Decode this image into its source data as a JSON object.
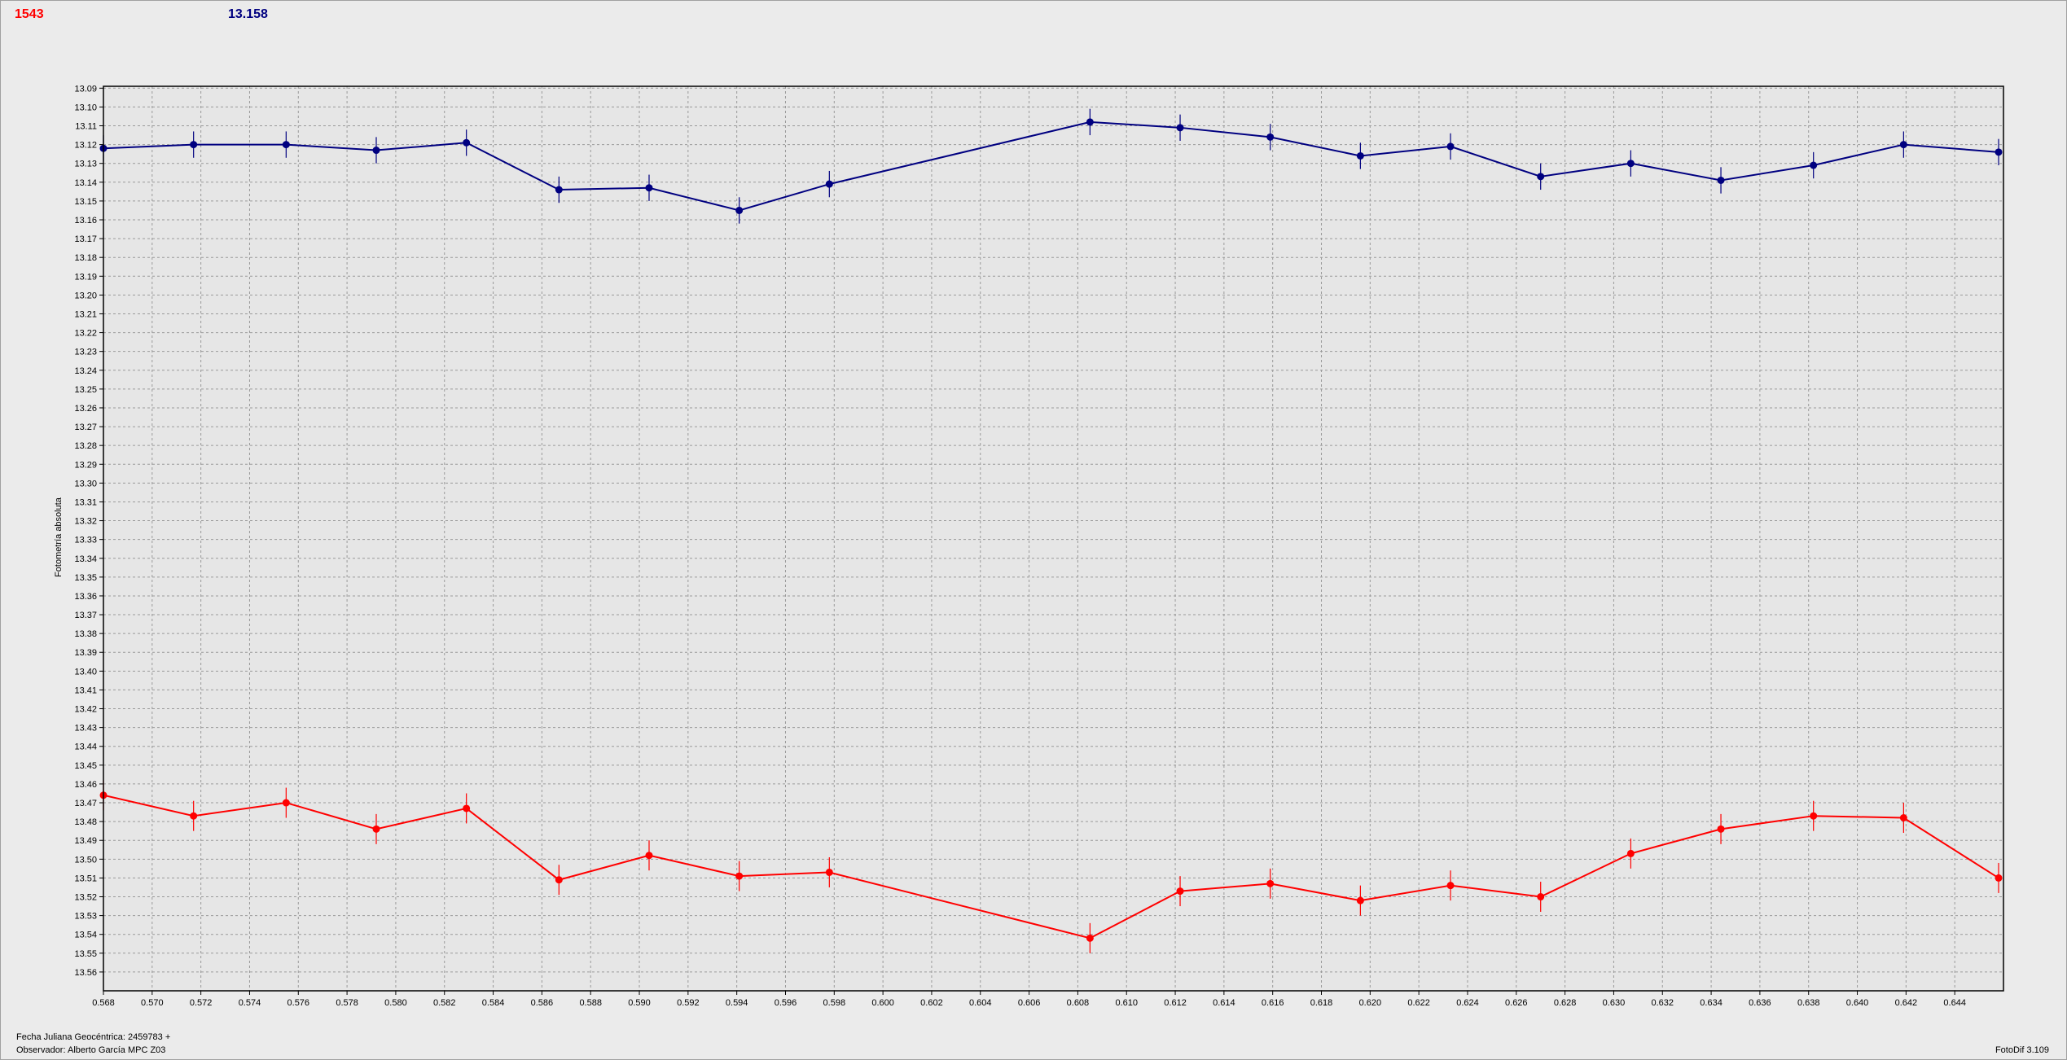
{
  "header": {
    "left_value": "1543",
    "right_value": "13.158"
  },
  "ylabel": "Fotometría absoluta",
  "footer": {
    "line1": "Fecha Juliana Geocéntrica: 2459783 +",
    "line2": "Observador: Alberto García MPC Z03",
    "version": "FotoDif 3.109"
  },
  "colors": {
    "series_blue": "#000080",
    "series_red": "#ff0000",
    "grid": "#9a9a9a",
    "plot_bg": "#e6e6e6"
  },
  "chart_data": {
    "type": "line",
    "grid": true,
    "xlim": [
      0.568,
      0.646
    ],
    "ylim": [
      13.089,
      13.57
    ],
    "y_inverted": true,
    "x_ticks": [
      "0.568",
      "0.570",
      "0.572",
      "0.574",
      "0.576",
      "0.578",
      "0.580",
      "0.582",
      "0.584",
      "0.586",
      "0.588",
      "0.590",
      "0.592",
      "0.594",
      "0.596",
      "0.598",
      "0.600",
      "0.602",
      "0.604",
      "0.606",
      "0.608",
      "0.610",
      "0.612",
      "0.614",
      "0.616",
      "0.618",
      "0.620",
      "0.622",
      "0.624",
      "0.626",
      "0.628",
      "0.630",
      "0.632",
      "0.634",
      "0.636",
      "0.638",
      "0.640",
      "0.642",
      "0.644"
    ],
    "y_ticks": [
      "13.09",
      "13.10",
      "13.11",
      "13.12",
      "13.13",
      "13.14",
      "13.15",
      "13.16",
      "13.17",
      "13.18",
      "13.19",
      "13.20",
      "13.21",
      "13.22",
      "13.23",
      "13.24",
      "13.25",
      "13.26",
      "13.27",
      "13.28",
      "13.29",
      "13.30",
      "13.31",
      "13.32",
      "13.33",
      "13.34",
      "13.35",
      "13.36",
      "13.37",
      "13.38",
      "13.39",
      "13.40",
      "13.41",
      "13.42",
      "13.43",
      "13.44",
      "13.45",
      "13.46",
      "13.47",
      "13.48",
      "13.49",
      "13.50",
      "13.51",
      "13.52",
      "13.53",
      "13.54",
      "13.55",
      "13.56"
    ],
    "series": [
      {
        "color": "#000080",
        "error": 0.007,
        "x": [
          0.568,
          0.5717,
          0.5755,
          0.5792,
          0.5829,
          0.5867,
          0.5904,
          0.5941,
          0.5978,
          0.6085,
          0.6122,
          0.6159,
          0.6196,
          0.6233,
          0.627,
          0.6307,
          0.6344,
          0.6382,
          0.6419,
          0.6458
        ],
        "y": [
          13.122,
          13.12,
          13.12,
          13.123,
          13.119,
          13.144,
          13.143,
          13.155,
          13.141,
          13.108,
          13.111,
          13.116,
          13.126,
          13.121,
          13.137,
          13.13,
          13.139,
          13.131,
          13.12,
          13.124
        ]
      },
      {
        "color": "#ff0000",
        "error": 0.008,
        "x": [
          0.568,
          0.5717,
          0.5755,
          0.5792,
          0.5829,
          0.5867,
          0.5904,
          0.5941,
          0.5978,
          0.6085,
          0.6122,
          0.6159,
          0.6196,
          0.6233,
          0.627,
          0.6307,
          0.6344,
          0.6382,
          0.6419,
          0.6458
        ],
        "y": [
          13.466,
          13.477,
          13.47,
          13.484,
          13.473,
          13.511,
          13.498,
          13.509,
          13.507,
          13.542,
          13.517,
          13.513,
          13.522,
          13.514,
          13.52,
          13.497,
          13.484,
          13.477,
          13.478,
          13.51
        ]
      }
    ]
  }
}
